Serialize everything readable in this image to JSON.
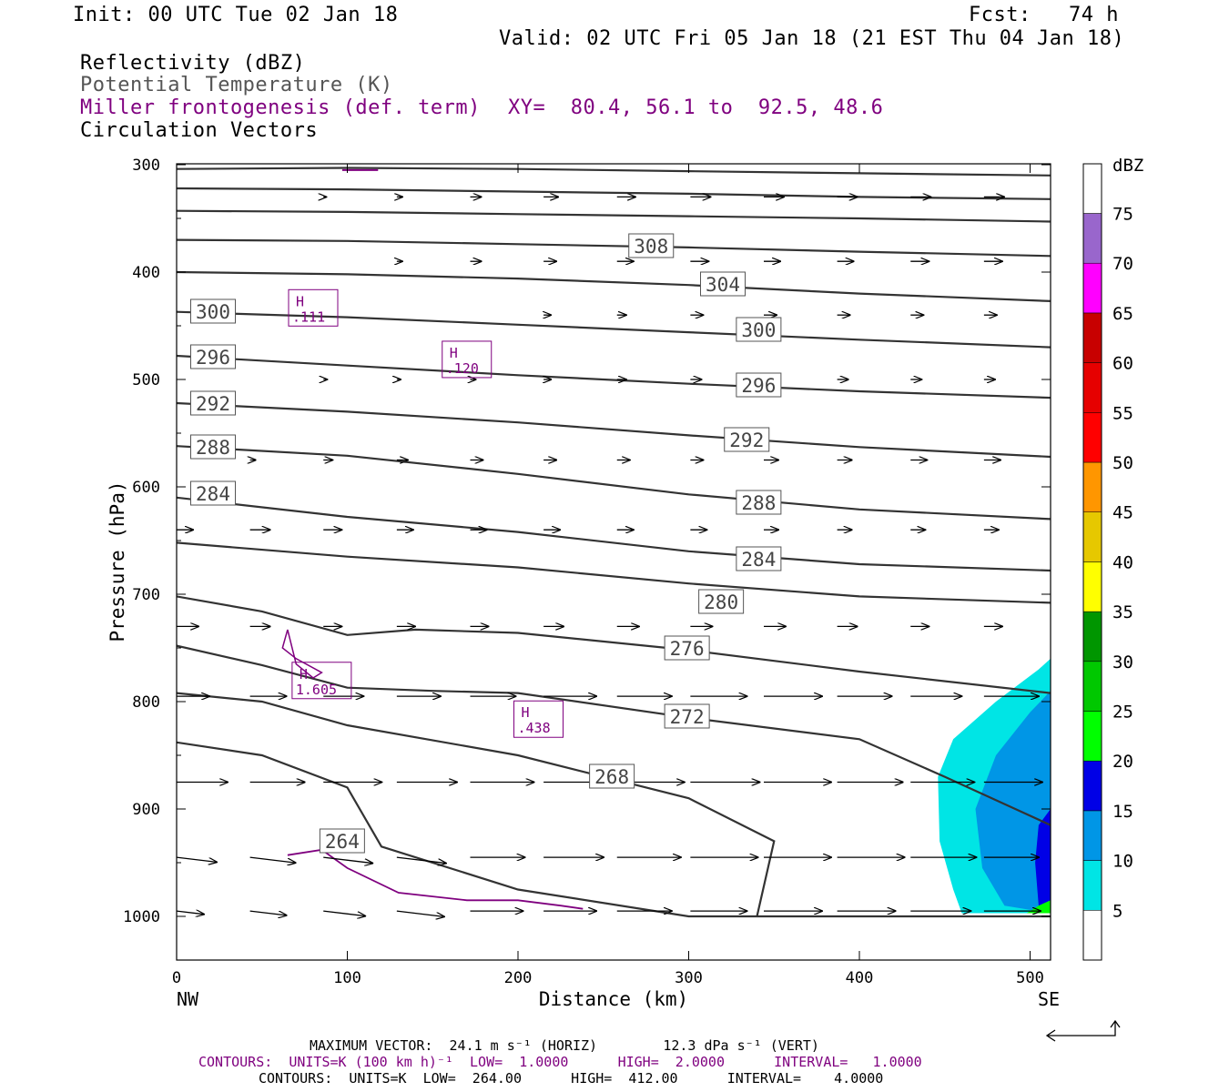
{
  "header": {
    "init": "Init: 00 UTC Tue 02 Jan 18",
    "fcst": "Fcst:   74 h",
    "valid": "Valid: 02 UTC Fri 05 Jan 18 (21 EST Thu 04 Jan 18)",
    "field1": "Reflectivity (dBZ)",
    "field2": "Potential Temperature (K)",
    "field3": "Miller frontogenesis (def. term)",
    "xy": "XY=  80.4, 56.1 to  92.5, 48.6",
    "field4": "Circulation Vectors"
  },
  "colors": {
    "theta": "#333333",
    "frontogenesis": "#7f007f",
    "dbz_5": "#00e5e5",
    "dbz_10": "#0096e6",
    "dbz_15": "#0000e6",
    "dbz_20": "#00ff00"
  },
  "chart_data": {
    "type": "cross-section",
    "xlabel": "Distance (km)",
    "ylabel": "Pressure (hPa)",
    "xlim": [
      0,
      512
    ],
    "ylim": [
      1045,
      300
    ],
    "x_ticks": [
      "0",
      "100",
      "200",
      "300",
      "400",
      "500"
    ],
    "y_ticks": [
      "300",
      "400",
      "500",
      "600",
      "700",
      "800",
      "900",
      "1000"
    ],
    "x_end_labels": {
      "left": "NW",
      "right": "SE"
    },
    "colorbar": {
      "title": "dBZ",
      "labels": [
        "5",
        "10",
        "15",
        "20",
        "25",
        "30",
        "35",
        "40",
        "45",
        "50",
        "55",
        "60",
        "65",
        "70",
        "75"
      ],
      "colors": [
        "#00e5e5",
        "#0096e6",
        "#0000e6",
        "#00ff00",
        "#00c800",
        "#009600",
        "#ffff00",
        "#e6c800",
        "#ff9600",
        "#ff0000",
        "#e60000",
        "#c80000",
        "#ff00ff",
        "#9966cc",
        "#ffffff"
      ]
    },
    "theta_contours": [
      {
        "label": "308",
        "points": [
          [
            0,
            304
          ],
          [
            100,
            303
          ],
          [
            200,
            304
          ],
          [
            300,
            306
          ],
          [
            400,
            308
          ],
          [
            512,
            310
          ]
        ]
      },
      {
        "label": "",
        "points": [
          [
            0,
            322
          ],
          [
            100,
            323
          ],
          [
            200,
            325
          ],
          [
            300,
            327
          ],
          [
            400,
            330
          ],
          [
            512,
            332
          ]
        ]
      },
      {
        "label": "",
        "points": [
          [
            0,
            343
          ],
          [
            100,
            344
          ],
          [
            200,
            346
          ],
          [
            300,
            348
          ],
          [
            400,
            350
          ],
          [
            512,
            353
          ]
        ]
      },
      {
        "label": "",
        "points": [
          [
            0,
            370
          ],
          [
            100,
            371
          ],
          [
            200,
            374
          ],
          [
            300,
            377
          ],
          [
            400,
            381
          ],
          [
            512,
            385
          ]
        ]
      },
      {
        "label": "304",
        "points": [
          [
            0,
            400
          ],
          [
            100,
            402
          ],
          [
            200,
            406
          ],
          [
            300,
            412
          ],
          [
            400,
            420
          ],
          [
            512,
            427
          ]
        ]
      },
      {
        "label": "300",
        "points": [
          [
            0,
            437
          ],
          [
            100,
            442
          ],
          [
            200,
            449
          ],
          [
            300,
            456
          ],
          [
            400,
            463
          ],
          [
            512,
            470
          ]
        ]
      },
      {
        "label": "296",
        "points": [
          [
            0,
            478
          ],
          [
            100,
            487
          ],
          [
            200,
            496
          ],
          [
            300,
            504
          ],
          [
            400,
            511
          ],
          [
            512,
            517
          ]
        ]
      },
      {
        "label": "292",
        "points": [
          [
            0,
            522
          ],
          [
            100,
            530
          ],
          [
            200,
            540
          ],
          [
            300,
            552
          ],
          [
            400,
            563
          ],
          [
            512,
            572
          ]
        ]
      },
      {
        "label": "288",
        "points": [
          [
            0,
            562
          ],
          [
            100,
            571
          ],
          [
            200,
            588
          ],
          [
            300,
            607
          ],
          [
            400,
            621
          ],
          [
            512,
            630
          ]
        ]
      },
      {
        "label": "284",
        "points": [
          [
            0,
            610
          ],
          [
            100,
            628
          ],
          [
            200,
            642
          ],
          [
            300,
            660
          ],
          [
            400,
            672
          ],
          [
            512,
            678
          ]
        ]
      },
      {
        "label": "280",
        "points": [
          [
            0,
            652
          ],
          [
            100,
            665
          ],
          [
            200,
            675
          ],
          [
            300,
            690
          ],
          [
            400,
            702
          ],
          [
            512,
            708
          ]
        ]
      },
      {
        "label": "276",
        "points": [
          [
            0,
            702
          ],
          [
            50,
            716
          ],
          [
            100,
            738
          ],
          [
            140,
            733
          ],
          [
            200,
            736
          ],
          [
            300,
            752
          ],
          [
            400,
            772
          ],
          [
            512,
            792
          ]
        ]
      },
      {
        "label": "272",
        "points": [
          [
            0,
            748
          ],
          [
            50,
            766
          ],
          [
            100,
            787
          ],
          [
            150,
            790
          ],
          [
            200,
            792
          ],
          [
            300,
            815
          ],
          [
            400,
            835
          ],
          [
            450,
            870
          ],
          [
            512,
            915
          ]
        ]
      },
      {
        "label": "268",
        "points": [
          [
            0,
            792
          ],
          [
            50,
            800
          ],
          [
            100,
            822
          ],
          [
            200,
            850
          ],
          [
            300,
            890
          ],
          [
            350,
            930
          ],
          [
            340,
            1000
          ]
        ]
      },
      {
        "label": "264",
        "points": [
          [
            0,
            838
          ],
          [
            50,
            850
          ],
          [
            100,
            880
          ],
          [
            120,
            935
          ],
          [
            200,
            975
          ],
          [
            300,
            1000
          ],
          [
            512,
            1000
          ]
        ]
      }
    ],
    "frontogenesis_maxima": [
      {
        "label": "H",
        "value": ".111",
        "x": 80,
        "p": 435
      },
      {
        "label": "H",
        "value": ".120",
        "x": 170,
        "p": 483
      },
      {
        "label": "H",
        "value": "1.605",
        "x": 85,
        "p": 782
      },
      {
        "label": "H",
        "value": ".438",
        "x": 212,
        "p": 818
      }
    ],
    "max_vector": "MAXIMUM VECTOR:  24.1 m s⁻¹ (HORIZ)        12.3 dPa s⁻¹ (VERT)",
    "contours_fronto": "CONTOURS:  UNITS=K (100 km h)⁻¹  LOW=  1.0000      HIGH=  2.0000      INTERVAL=   1.0000",
    "contours_theta": "CONTOURS:  UNITS=K  LOW=  264.00      HIGH=  412.00      INTERVAL=    4.0000"
  }
}
